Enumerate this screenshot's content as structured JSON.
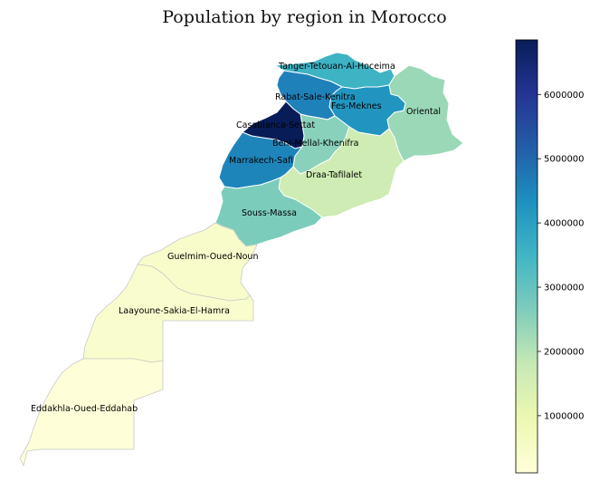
{
  "title": "Population by region in Morocco",
  "colorscale": {
    "name": "YlGnBu",
    "min": 110000,
    "max": 6850000,
    "stops": [
      "#ffffd9",
      "#edf8b1",
      "#c7e9b4",
      "#7fcdbb",
      "#41b6c4",
      "#1d91c0",
      "#225ea8",
      "#253494",
      "#081d58"
    ],
    "ticks": [
      1000000,
      2000000,
      3000000,
      4000000,
      5000000,
      6000000
    ],
    "tick_labels": [
      "1000000",
      "2000000",
      "3000000",
      "4000000",
      "5000000",
      "6000000"
    ]
  },
  "regions": [
    {
      "id": "tanger",
      "name": "Tanger-Tetouan-Al-Hoceima",
      "population": 3550000
    },
    {
      "id": "oriental",
      "name": "Oriental",
      "population": 2310000
    },
    {
      "id": "fes",
      "name": "Fes-Meknes",
      "population": 4240000
    },
    {
      "id": "rabat",
      "name": "Rabat-Sale-Kenitra",
      "population": 4580000
    },
    {
      "id": "bml",
      "name": "Beni-Mellal-Khenifra",
      "population": 2520000
    },
    {
      "id": "casa",
      "name": "Casablanca-Settat",
      "population": 6860000
    },
    {
      "id": "marrakech",
      "name": "Marrakech-Safi",
      "population": 4520000
    },
    {
      "id": "draa",
      "name": "Draa-Tafilalet",
      "population": 1640000
    },
    {
      "id": "souss",
      "name": "Souss-Massa",
      "population": 2680000
    },
    {
      "id": "guelmim",
      "name": "Guelmim-Oued-Noun",
      "population": 430000
    },
    {
      "id": "laayoune",
      "name": "Laayoune-Sakia-El-Hamra",
      "population": 370000
    },
    {
      "id": "dakhla",
      "name": "Eddakhla-Oued-Eddahab",
      "population": 140000
    }
  ]
}
